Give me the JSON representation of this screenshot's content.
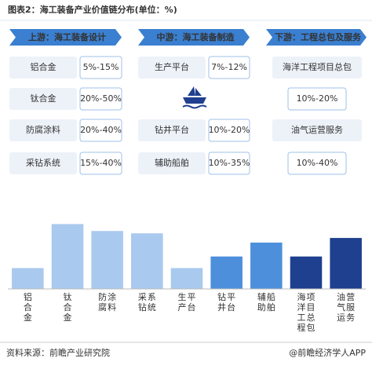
{
  "title": "图表2：海工装备产业价值链分布(单位：%)",
  "stages": [
    {
      "header": "上游：海工装备设计",
      "items": [
        {
          "label": "铝合金",
          "range": "5%-15%"
        },
        {
          "label": "钛合金",
          "range": "20%-50%"
        },
        {
          "label": "防腐涂料",
          "range": "20%-40%"
        },
        {
          "label": "采钻系统",
          "range": "15%-40%"
        }
      ]
    },
    {
      "header": "中游：海工装备制造",
      "items": [
        {
          "label": "生产平台",
          "range": "7%-12%"
        },
        {
          "label": "钻井平台",
          "range": "10%-20%"
        },
        {
          "label": "辅助船舶",
          "range": "10%-35%"
        }
      ]
    },
    {
      "header": "下游：工程总包及服务",
      "items": [
        {
          "label": "海洋工程项目总包",
          "range": "10%-20%"
        },
        {
          "label": "油气运营服务",
          "range": "10%-40%"
        }
      ]
    }
  ],
  "chart_data": {
    "type": "bar",
    "categories": [
      "铝合金",
      "钛合金",
      "防腐涂料",
      "采钻系统",
      "生产平台",
      "钻井平台",
      "辅助船舶",
      "海洋工程项目总包",
      "油气运营服务"
    ],
    "values": [
      9,
      28,
      25,
      24,
      9,
      14,
      20,
      14,
      22
    ],
    "colors": [
      "#a9c9ee",
      "#a9c9ee",
      "#a9c9ee",
      "#a9c9ee",
      "#a9c9ee",
      "#4d8fdb",
      "#4d8fdb",
      "#1f3f8f",
      "#1f3f8f"
    ],
    "ylim": [
      0,
      40
    ]
  },
  "footer": {
    "source": "资料来源：前瞻产业研究院",
    "credit": "@前瞻经济学人APP"
  }
}
